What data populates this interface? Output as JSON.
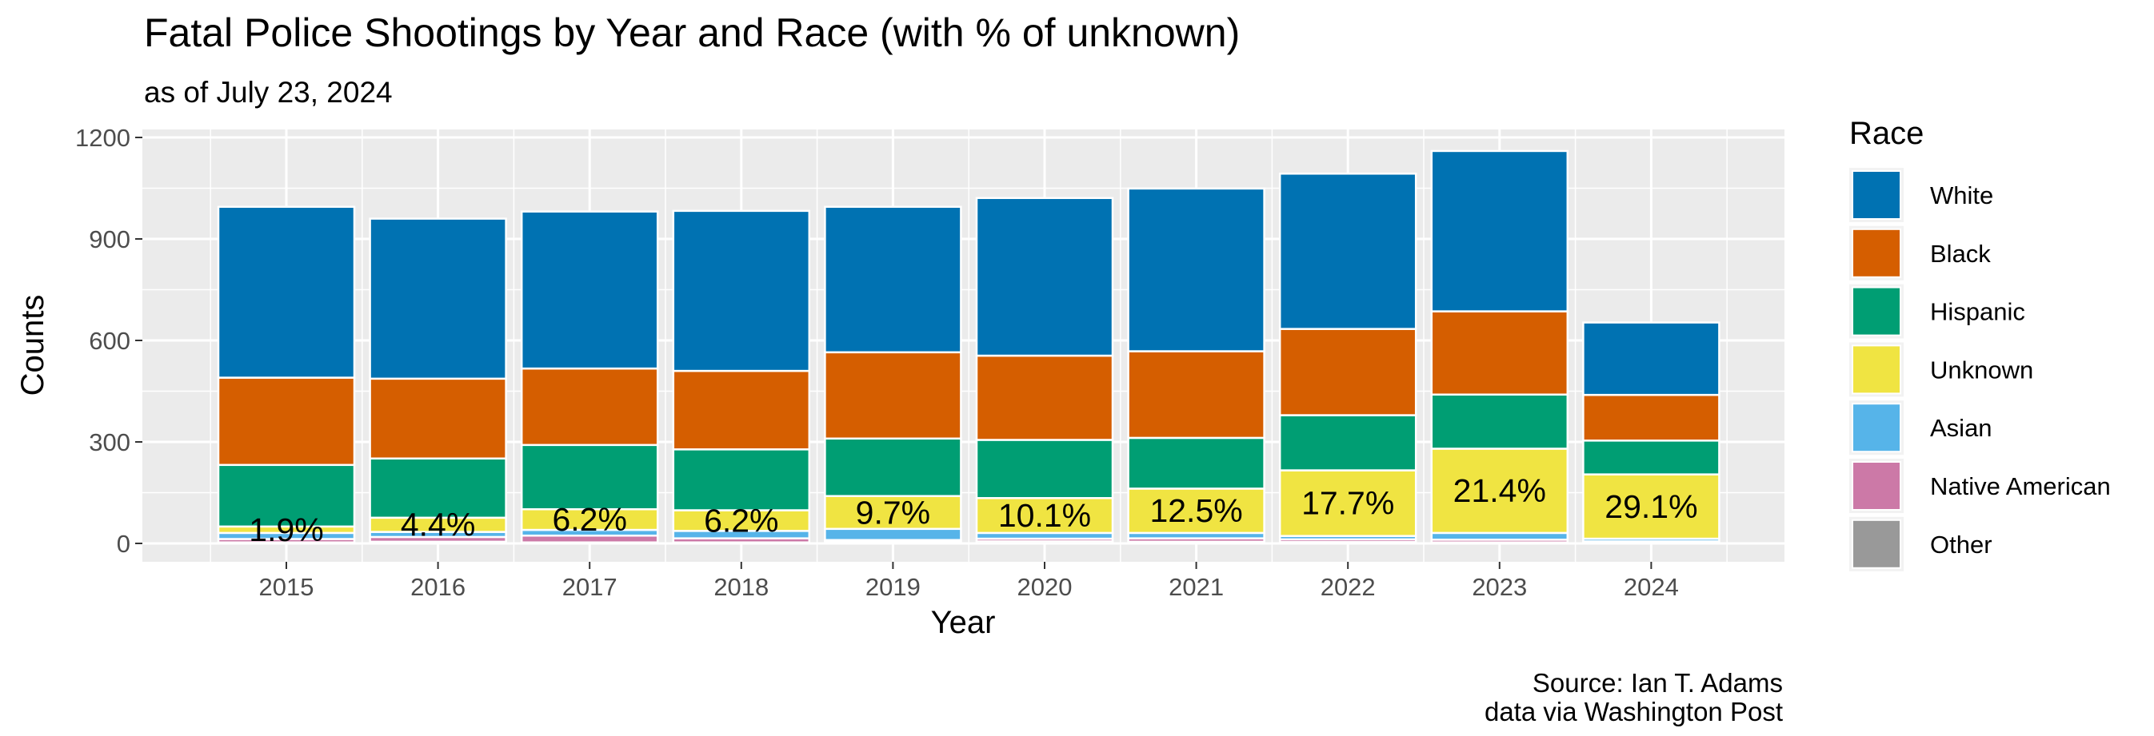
{
  "chart_data": {
    "type": "bar",
    "stacked": true,
    "title": "Fatal Police Shootings by Year and Race (with % of unknown)",
    "subtitle": "as of July 23, 2024",
    "xlabel": "Year",
    "ylabel": "Counts",
    "caption_lines": [
      "Source: Ian T. Adams",
      "data via Washington Post"
    ],
    "ylim": [
      0,
      1200
    ],
    "yticks": [
      0,
      300,
      600,
      900,
      1200
    ],
    "grid": true,
    "legend_title": "Race",
    "legend_position": "right",
    "categories": [
      "2015",
      "2016",
      "2017",
      "2018",
      "2019",
      "2020",
      "2021",
      "2022",
      "2023",
      "2024"
    ],
    "series": [
      {
        "name": "Other",
        "color": "#999999",
        "values": [
          3,
          5,
          3,
          3,
          5,
          6,
          5,
          4,
          3,
          1
        ]
      },
      {
        "name": "Native American",
        "color": "#CC79A7",
        "values": [
          10,
          14,
          20,
          12,
          5,
          8,
          10,
          8,
          8,
          5
        ]
      },
      {
        "name": "Asian",
        "color": "#56B4E9",
        "values": [
          18,
          15,
          17,
          22,
          33,
          17,
          16,
          10,
          20,
          8
        ]
      },
      {
        "name": "Unknown",
        "color": "#F0E442",
        "values": [
          19,
          42,
          61,
          61,
          97,
          103,
          131,
          194,
          249,
          190
        ]
      },
      {
        "name": "Hispanic",
        "color": "#009E73",
        "values": [
          182,
          175,
          190,
          180,
          170,
          172,
          150,
          163,
          160,
          100
        ]
      },
      {
        "name": "Black",
        "color": "#D55E00",
        "values": [
          258,
          236,
          226,
          232,
          255,
          249,
          256,
          255,
          246,
          135
        ]
      },
      {
        "name": "White",
        "color": "#0072B2",
        "values": [
          505,
          473,
          464,
          473,
          430,
          466,
          481,
          459,
          474,
          214
        ]
      }
    ],
    "unknown_pct_labels": [
      "1.9%",
      "4.4%",
      "6.2%",
      "6.2%",
      "9.7%",
      "10.1%",
      "12.5%",
      "17.7%",
      "21.4%",
      "29.1%"
    ],
    "legend_order": [
      "White",
      "Black",
      "Hispanic",
      "Unknown",
      "Asian",
      "Native American",
      "Other"
    ]
  },
  "colors": {
    "panel": "#EBEBEB",
    "grid": "#FFFFFF",
    "bar_outline": "#FFFFFF"
  }
}
